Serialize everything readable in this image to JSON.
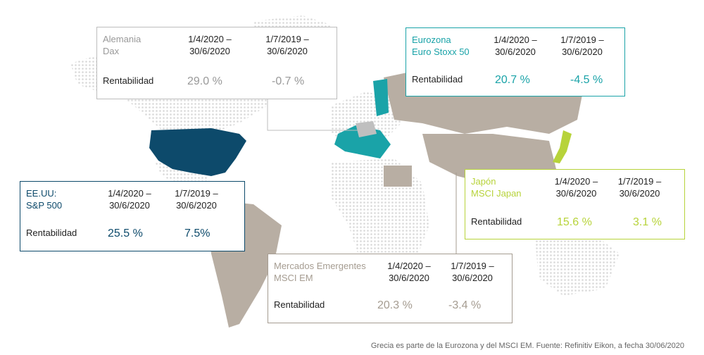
{
  "colors": {
    "world_dots": "#d9d9d9",
    "emerging": "#b8aea3",
    "usa": "#0d4a6b",
    "eurozone": "#1aa3a8",
    "japan": "#b7d33a",
    "germany": "#bfbfbf",
    "emerging_text": "#a59c91"
  },
  "germany": {
    "name": "Alemania",
    "index": "Dax",
    "period1": "1/4/2020 –\n30/6/2020",
    "period2": "1/7/2019 –\n30/6/2020",
    "label": "Rentabilidad",
    "v1": "29.0 %",
    "v2": "-0.7 %"
  },
  "eurozone": {
    "name": "Eurozona",
    "index": "Euro Stoxx 50",
    "period1": "1/4/2020 –\n30/6/2020",
    "period2": "1/7/2019 –\n30/6/2020",
    "label": "Rentabilidad",
    "v1": "20.7 %",
    "v2": "-4.5 %"
  },
  "usa": {
    "name": "EE.UU:",
    "index": "S&P 500",
    "period1": "1/4/2020 –\n30/6/2020",
    "period2": "1/7/2019 –\n30/6/2020",
    "label": "Rentabilidad",
    "v1": "25.5 %",
    "v2": "7.5%"
  },
  "japan": {
    "name": "Japón",
    "index": "MSCI Japan",
    "period1": "1/4/2020 –\n30/6/2020",
    "period2": "1/7/2019 –\n30/6/2020",
    "label": "Rentabilidad",
    "v1": "15.6 %",
    "v2": "3.1 %"
  },
  "emerging": {
    "name": "Mercados Emergentes",
    "index": "MSCI EM",
    "period1": "1/4/2020 –\n30/6/2020",
    "period2": "1/7/2019 –\n30/6/2020",
    "label": "Rentabilidad",
    "v1": "20.3 %",
    "v2": "-3.4 %"
  },
  "footer": "Grecia es parte de la Eurozona y del MSCI EM. Fuente: Refinitiv Eikon, a fecha 30/06/2020"
}
